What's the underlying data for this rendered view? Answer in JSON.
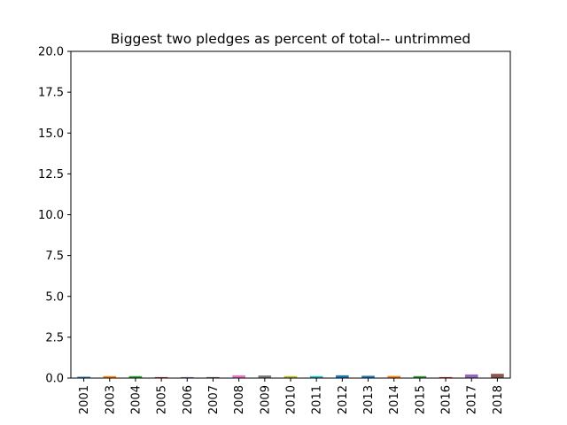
{
  "chart_data": {
    "type": "bar",
    "title": "Biggest two pledges as percent of total-- untrimmed",
    "xlabel": "",
    "ylabel": "",
    "ylim": [
      0,
      20
    ],
    "yticks": [
      "0.0",
      "2.5",
      "5.0",
      "7.5",
      "10.0",
      "12.5",
      "15.0",
      "17.5",
      "20.0"
    ],
    "grid": false,
    "categories": [
      "2001",
      "2003",
      "2004",
      "2005",
      "2006",
      "2007",
      "2008",
      "2009",
      "2010",
      "2011",
      "2012",
      "2013",
      "2014",
      "2015",
      "2016",
      "2017",
      "2018"
    ],
    "values": [
      0.08,
      0.12,
      0.12,
      0.06,
      0.06,
      0.06,
      0.17,
      0.16,
      0.12,
      0.12,
      0.17,
      0.14,
      0.13,
      0.12,
      0.06,
      0.22,
      0.26
    ],
    "bar_colors": [
      "#1f77b4",
      "#ff7f0e",
      "#2ca02c",
      "#d62728",
      "#9467bd",
      "#8c564b",
      "#e377c2",
      "#7f7f7f",
      "#bcbd22",
      "#17becf",
      "#1f77b4",
      "#1f77b4",
      "#ff7f0e",
      "#2ca02c",
      "#d62728",
      "#9467bd",
      "#8c564b"
    ]
  }
}
